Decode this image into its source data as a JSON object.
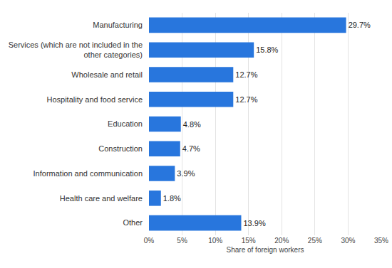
{
  "chart_data": {
    "type": "bar",
    "orientation": "horizontal",
    "categories": [
      "Manufacturing",
      "Services (which are not included in the other categories)",
      "Wholesale and retail",
      "Hospitality and food service",
      "Education",
      "Construction",
      "Information and communication",
      "Health care and welfare",
      "Other"
    ],
    "values": [
      29.7,
      15.8,
      12.7,
      12.7,
      4.8,
      4.7,
      3.9,
      1.8,
      13.9
    ],
    "value_labels": [
      "29.7%",
      "15.8%",
      "12.7%",
      "12.7%",
      "4.8%",
      "4.7%",
      "3.9%",
      "1.8%",
      "13.9%"
    ],
    "data_labels": true,
    "color": "#2876dd",
    "x_label": "Share of foreign workers",
    "xlim": [
      0,
      35
    ],
    "xticks": [
      {
        "value": 0,
        "label": "0%"
      },
      {
        "value": 5,
        "label": "5%"
      },
      {
        "value": 10,
        "label": "10%"
      },
      {
        "value": 15,
        "label": "15%"
      },
      {
        "value": 20,
        "label": "20%"
      },
      {
        "value": 25,
        "label": "25%"
      },
      {
        "value": 30,
        "label": "30%"
      },
      {
        "value": 35,
        "label": "35%"
      }
    ],
    "grid": true
  }
}
